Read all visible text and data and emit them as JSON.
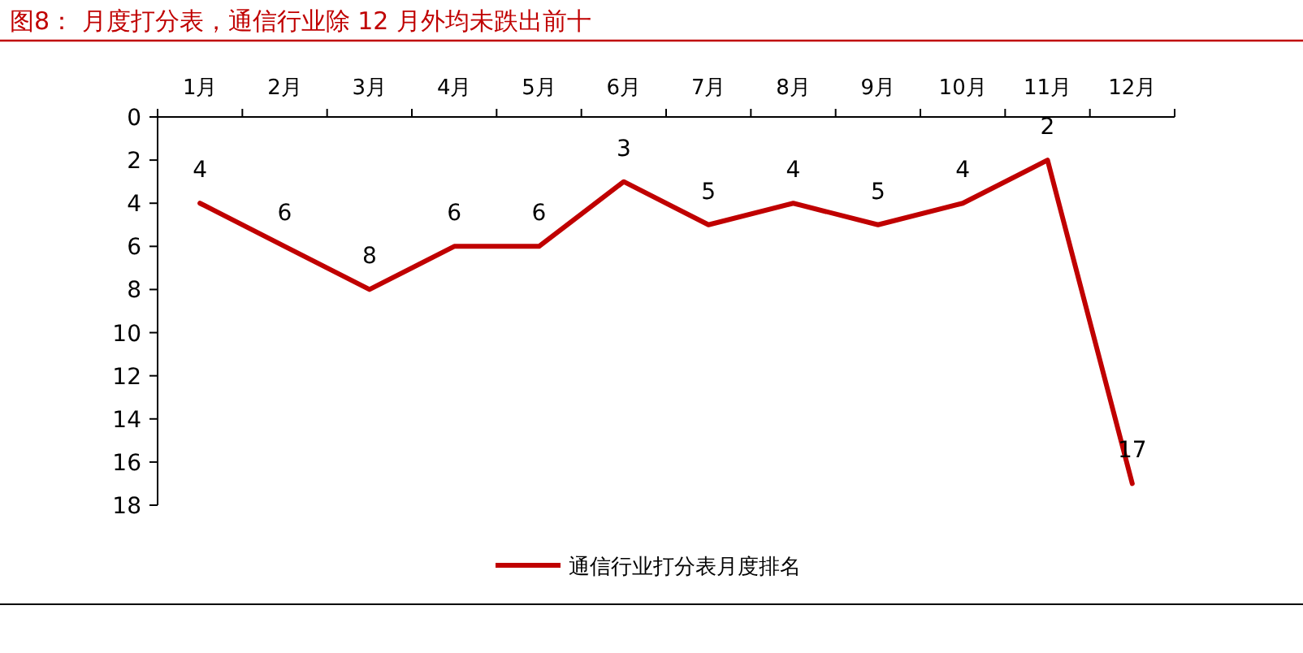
{
  "chart_data": {
    "type": "line",
    "title": "图8：  月度打分表，通信行业除 12 月外均未跌出前十",
    "categories": [
      "1月",
      "2月",
      "3月",
      "4月",
      "5月",
      "6月",
      "7月",
      "8月",
      "9月",
      "10月",
      "11月",
      "12月"
    ],
    "series": [
      {
        "name": "通信行业打分表月度排名",
        "color": "#c00000",
        "values": [
          4,
          6,
          8,
          6,
          6,
          3,
          5,
          4,
          5,
          4,
          2,
          17
        ]
      }
    ],
    "ylim": [
      18,
      0
    ],
    "yticks": [
      0,
      2,
      4,
      6,
      8,
      10,
      12,
      14,
      16,
      18
    ],
    "data_labels": true,
    "legend": "bottom",
    "grid": false,
    "marker": "none",
    "line_style": "solid"
  }
}
